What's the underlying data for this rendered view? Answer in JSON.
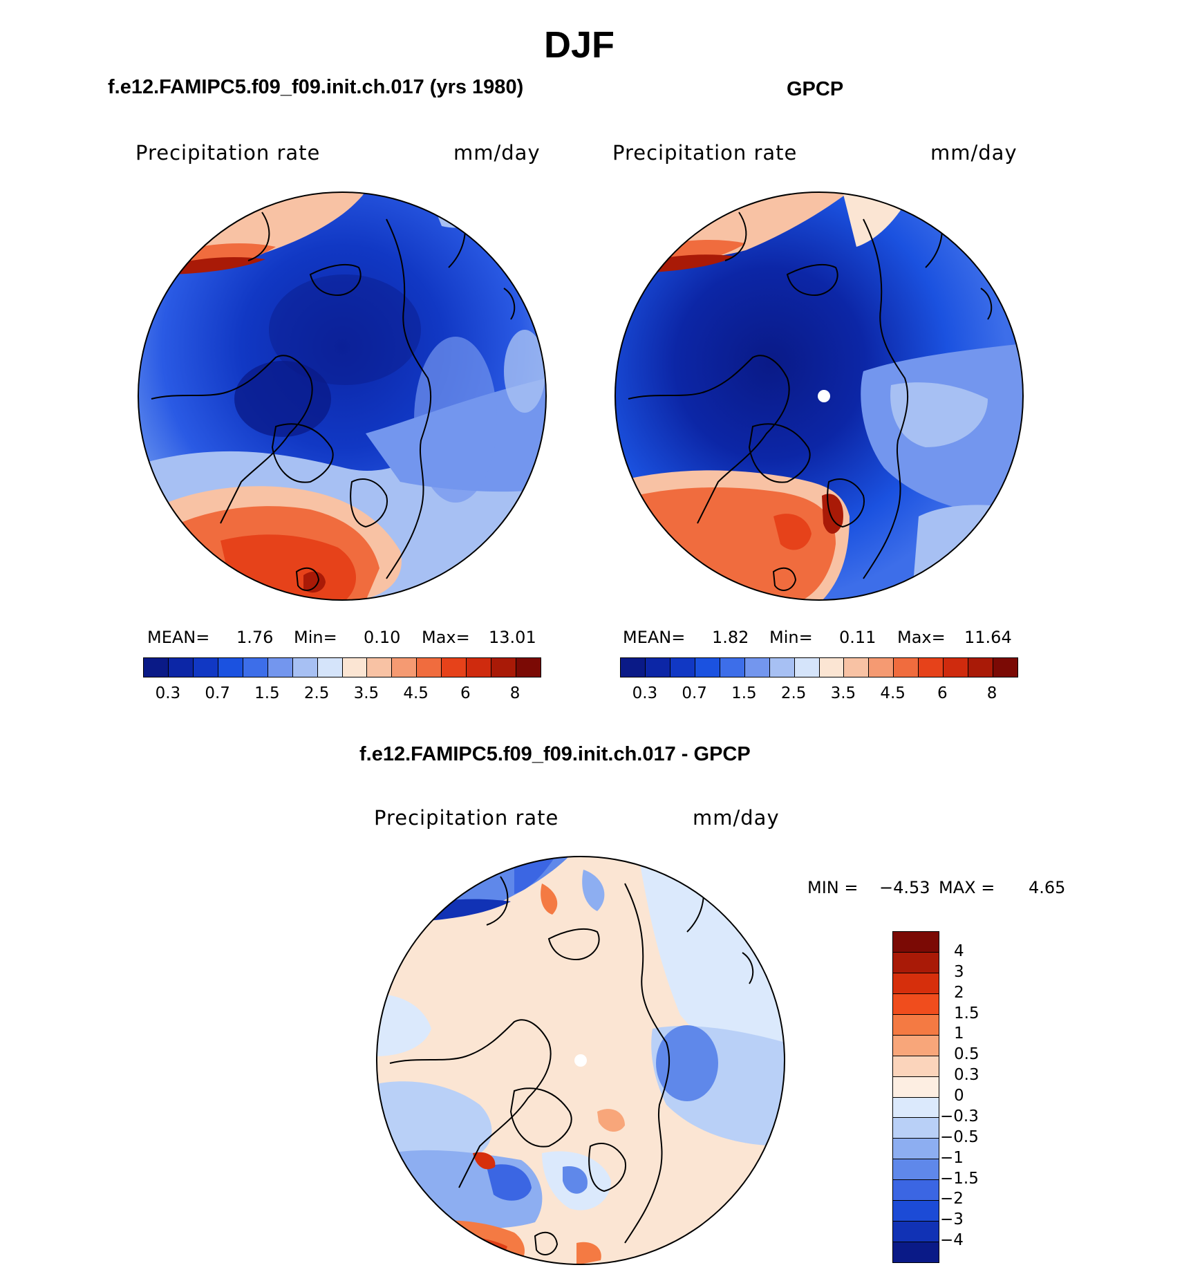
{
  "title": "DJF",
  "panels": [
    {
      "id": "model",
      "title": "f.e12.FAMIPC5.f09_f09.init.ch.017 (yrs 1980)",
      "variable": "Precipitation rate",
      "units": "mm/day",
      "stats": {
        "mean_label": "MEAN=",
        "mean": "1.76",
        "min_label": "Min=",
        "min": "0.10",
        "max_label": "Max=",
        "max": "13.01"
      }
    },
    {
      "id": "obs",
      "title": "GPCP",
      "variable": "Precipitation rate",
      "units": "mm/day",
      "stats": {
        "mean_label": "MEAN=",
        "mean": "1.82",
        "min_label": "Min=",
        "min": "0.11",
        "max_label": "Max=",
        "max": "11.64"
      }
    },
    {
      "id": "diff",
      "title": "f.e12.FAMIPC5.f09_f09.init.ch.017 - GPCP",
      "variable": "Precipitation rate",
      "units": "mm/day",
      "stats": {
        "min_label": "MIN =",
        "min": "−4.53",
        "max_label": "MAX =",
        "max": "4.65"
      }
    }
  ],
  "colorbar_abs": {
    "colors": [
      "#0a1a87",
      "#0c26a6",
      "#1138c4",
      "#1b52e0",
      "#3d6ee9",
      "#7396ee",
      "#a7c0f3",
      "#d5e4fa",
      "#fbe5d3",
      "#f8c2a4",
      "#f59a72",
      "#f06c3e",
      "#e6421a",
      "#cf2b0e",
      "#a91a07",
      "#7b0a05"
    ],
    "tick_labels": [
      "0.3",
      "0.7",
      "1.5",
      "2.5",
      "3.5",
      "4.5",
      "6",
      "8"
    ]
  },
  "colorbar_diff": {
    "colors": [
      "#7b0a05",
      "#a91a07",
      "#d62f0c",
      "#f04d1d",
      "#f47a43",
      "#f8a67a",
      "#fbd4bb",
      "#fdeee2",
      "#dbe9fc",
      "#b9d0f7",
      "#8daef1",
      "#5f88ea",
      "#3b66e3",
      "#1c4bd6",
      "#1132b5",
      "#0a1a87"
    ],
    "tick_labels": [
      "4",
      "3",
      "2",
      "1.5",
      "1",
      "0.5",
      "0.3",
      "0",
      "−0.3",
      "−0.5",
      "−1",
      "−1.5",
      "−2",
      "−3",
      "−4"
    ]
  }
}
